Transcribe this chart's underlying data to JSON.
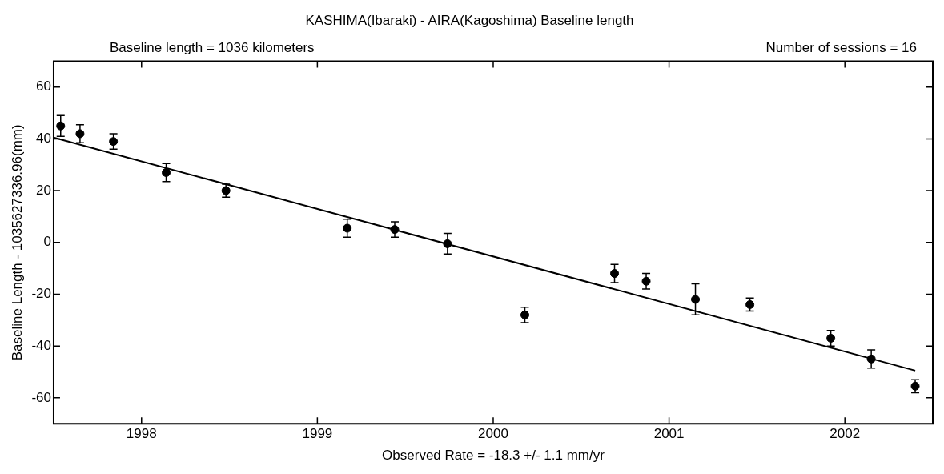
{
  "chart_data": {
    "type": "scatter",
    "title": "KASHIMA(Ibaraki) - AIRA(Kagoshima) Baseline length",
    "xlabel": "Observed Rate = -18.3 +/- 1.1 mm/yr",
    "ylabel": "Baseline Length - 1035627336.96(mm)",
    "annotations": [
      "Baseline length = 1036 kilometers",
      "Number of sessions = 16"
    ],
    "xlim": [
      1997.5,
      2002.5
    ],
    "xticks": [
      1998,
      1999,
      2000,
      2001,
      2002
    ],
    "ylim": [
      -70,
      70
    ],
    "yticks": [
      -60,
      -40,
      -20,
      0,
      20,
      40,
      60
    ],
    "grid": false,
    "legend": false,
    "marker": "circle",
    "series": [
      {
        "color": "#000000",
        "x": [
          1997.54,
          1997.65,
          1997.84,
          1998.14,
          1998.48,
          1999.17,
          1999.44,
          1999.74,
          2000.18,
          2000.69,
          2000.87,
          2001.15,
          2001.46,
          2001.92,
          2002.15,
          2002.4
        ],
        "values": [
          45,
          42,
          39,
          27,
          20,
          5.5,
          5,
          -0.5,
          -28,
          -12,
          -15,
          -22,
          -24,
          -37,
          -45,
          -55.5
        ],
        "errors": [
          4,
          3.5,
          3,
          3.5,
          2.5,
          3.5,
          3,
          4,
          3,
          3.5,
          3,
          6,
          2.5,
          3,
          3.5,
          2.5
        ]
      },
      {
        "type": "line",
        "color": "#000000",
        "line_style": "solid",
        "marker": "none",
        "x": [
          1997.5,
          2002.4
        ],
        "values": [
          40.5,
          -49.5
        ]
      }
    ]
  }
}
